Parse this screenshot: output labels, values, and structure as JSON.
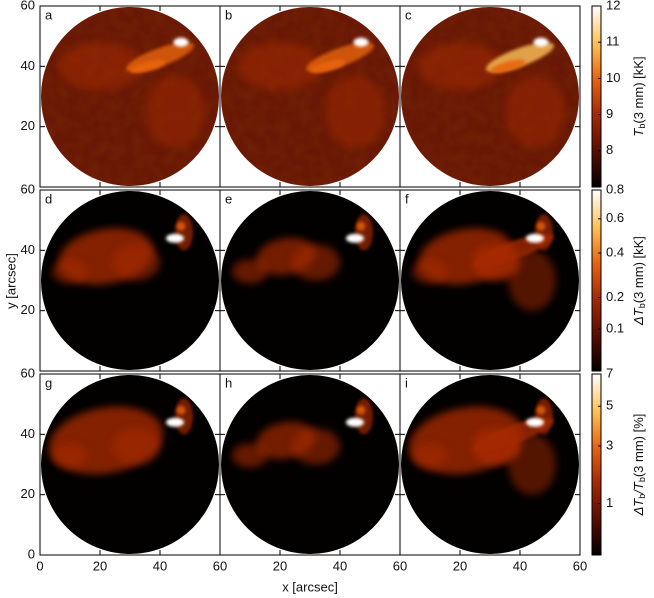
{
  "chart_data": {
    "type": "image-grid",
    "xlabel": "x [arcsec]",
    "ylabel": "y [arcsec]",
    "xlim": [
      0,
      60
    ],
    "ylim": [
      0,
      60
    ],
    "xticks": [
      0,
      20,
      40,
      60
    ],
    "yticks": [
      0,
      20,
      40,
      60
    ],
    "panels": [
      "a",
      "b",
      "c",
      "d",
      "e",
      "f",
      "g",
      "h",
      "i"
    ],
    "colormap": [
      "#000000",
      "#5a0d02",
      "#a52a05",
      "#e8650f",
      "#ffc35a",
      "#ffffff"
    ],
    "colorbars": [
      {
        "label": [
          "T",
          "b",
          "(3 mm) [kK]"
        ],
        "lim": [
          7,
          12
        ],
        "scale": "linear",
        "ticks": [
          8,
          9,
          10,
          11,
          12
        ]
      },
      {
        "label": [
          "ΔT",
          "b",
          "(3 mm) [kK]"
        ],
        "lim": [
          0.02,
          0.8
        ],
        "scale": "sqrt",
        "ticks": [
          0.1,
          0.2,
          0.4,
          0.6,
          0.8
        ]
      },
      {
        "label": [
          "ΔT",
          "b",
          "/T",
          "b",
          "(3 mm) [%]"
        ],
        "lim": [
          0.12,
          7
        ],
        "scale": "sqrt",
        "ticks": [
          1,
          3,
          5,
          7
        ]
      }
    ]
  }
}
